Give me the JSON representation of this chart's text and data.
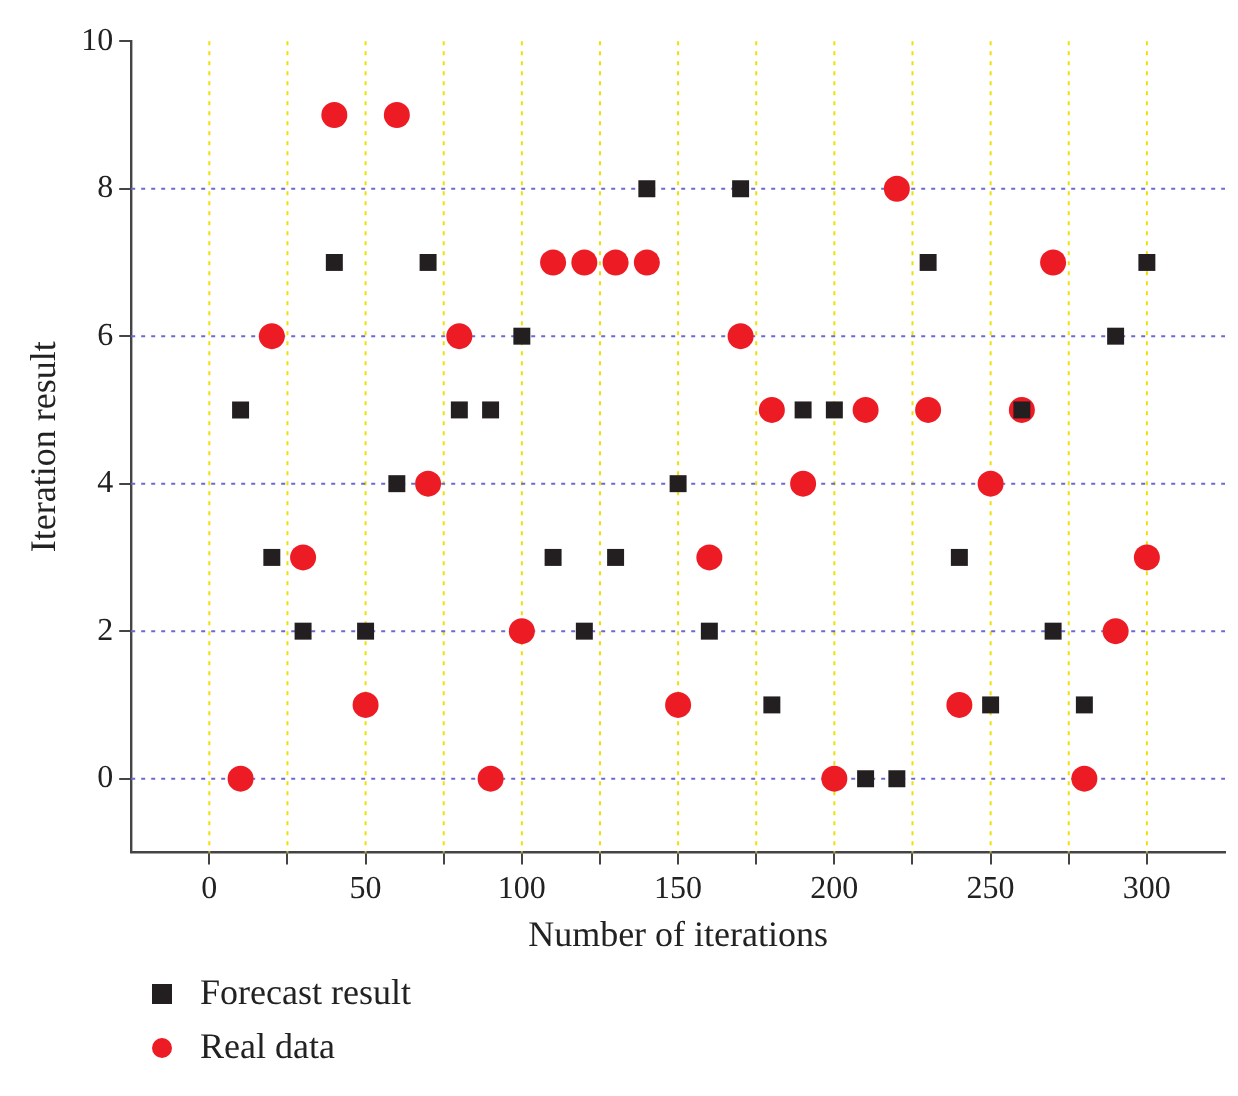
{
  "chart_data": {
    "type": "scatter",
    "xlabel": "Number of iterations",
    "ylabel": "Iteration result",
    "x": [
      10,
      20,
      30,
      40,
      50,
      60,
      70,
      80,
      90,
      100,
      110,
      120,
      130,
      140,
      150,
      160,
      170,
      180,
      190,
      200,
      210,
      220,
      230,
      240,
      250,
      260,
      270,
      280,
      290,
      300
    ],
    "series": [
      {
        "name": "Forecast result",
        "color": "#231f20",
        "marker": "square",
        "values": [
          5,
          3,
          2,
          7,
          2,
          4,
          7,
          5,
          5,
          6,
          3,
          2,
          3,
          8,
          4,
          2,
          8,
          1,
          5,
          5,
          0,
          0,
          7,
          3,
          1,
          5,
          2,
          1,
          6,
          7
        ]
      },
      {
        "name": "Real data",
        "color": "#ed1c24",
        "marker": "circle",
        "values": [
          0,
          6,
          3,
          9,
          1,
          9,
          4,
          6,
          0,
          2,
          7,
          7,
          7,
          7,
          1,
          3,
          6,
          5,
          4,
          0,
          5,
          8,
          5,
          1,
          4,
          5,
          7,
          0,
          2,
          3
        ]
      }
    ],
    "xlim": [
      -25,
      325
    ],
    "xticks": [
      0,
      {
        "value": 25,
        "label": null
      },
      50,
      {
        "value": 75,
        "label": null
      },
      100,
      {
        "value": 125,
        "label": null
      },
      150,
      {
        "value": 175,
        "label": null
      },
      200,
      {
        "value": 225,
        "label": null
      },
      250,
      {
        "value": 275,
        "label": null
      },
      300
    ],
    "ylim": [
      -1,
      10
    ],
    "yticks": [
      0,
      2,
      4,
      6,
      8,
      10
    ],
    "grid": true,
    "legend": "bottom left"
  }
}
